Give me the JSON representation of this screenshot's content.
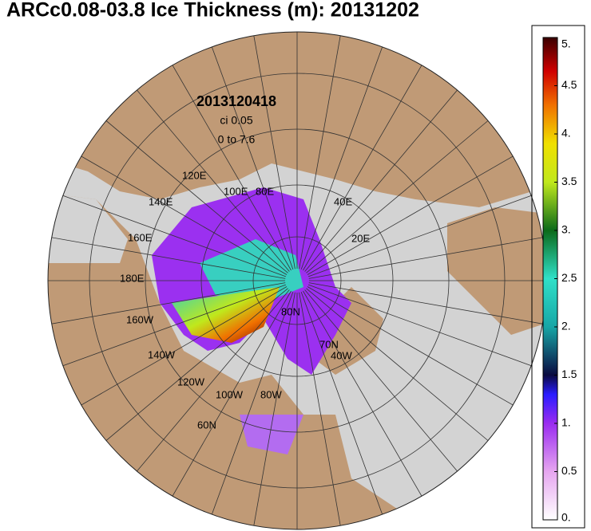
{
  "title": "ARCc0.08-03.8 Ice Thickness (m): 20131202",
  "annotations": {
    "date": "2013120418",
    "interval": "ci 0.05",
    "range": "0 to 7.6"
  },
  "map_labels": [
    "120E",
    "140E",
    "100E",
    "80E",
    "40E",
    "20E",
    "160E",
    "180E",
    "160W",
    "140W",
    "120W",
    "100W",
    "80W",
    "80N",
    "70N",
    "40W",
    "60N"
  ],
  "colorbar": {
    "range": [
      0,
      5
    ],
    "ticks": [
      {
        "value": 0,
        "label": "0."
      },
      0.5,
      {
        "value": 1,
        "label": "1."
      },
      1.5,
      {
        "value": 2,
        "label": "2."
      },
      2.5,
      {
        "value": 3,
        "label": "3."
      },
      3.5,
      {
        "value": 4,
        "label": "4."
      },
      4.5,
      {
        "value": 5,
        "label": "5."
      }
    ]
  }
}
